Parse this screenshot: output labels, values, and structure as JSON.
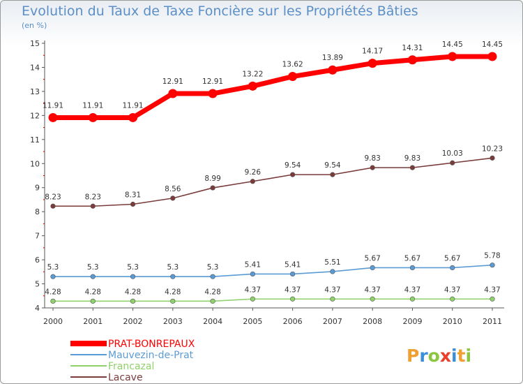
{
  "title": "Evolution du Taux de Taxe Foncière sur les Propriétés Bâties",
  "unit_label": "(en %)",
  "logo_text": "Proxiti",
  "chart_data": {
    "type": "line",
    "x": [
      "2000",
      "2001",
      "2002",
      "2003",
      "2004",
      "2005",
      "2006",
      "2007",
      "2008",
      "2009",
      "2010",
      "2011"
    ],
    "ylim": [
      4,
      15
    ],
    "yticks": [
      4,
      5,
      6,
      7,
      8,
      9,
      10,
      11,
      12,
      13,
      14,
      15
    ],
    "grid": false,
    "legend_position": "bottom-left",
    "series": [
      {
        "name": "PRAT-BONREPAUX",
        "color": "#ff0000",
        "values": [
          11.91,
          11.91,
          11.91,
          12.91,
          12.91,
          13.22,
          13.62,
          13.89,
          14.17,
          14.31,
          14.45,
          14.45
        ],
        "labels": [
          "11.91",
          "11.91",
          "11.91",
          "12.91",
          "12.91",
          "13.22",
          "13.62",
          "13.89",
          "14.17",
          "14.31",
          "14.45",
          "14.45"
        ]
      },
      {
        "name": "Mauvezin-de-Prat",
        "color": "#5b9bd5",
        "values": [
          5.3,
          5.3,
          5.3,
          5.3,
          5.3,
          5.41,
          5.41,
          5.51,
          5.67,
          5.67,
          5.67,
          5.78
        ],
        "labels": [
          "5.3",
          "5.3",
          "5.3",
          "5.3",
          "5.3",
          "5.41",
          "5.41",
          "5.51",
          "5.67",
          "5.67",
          "5.67",
          "5.78"
        ]
      },
      {
        "name": "Francazal",
        "color": "#8fd16a",
        "values": [
          4.28,
          4.28,
          4.28,
          4.28,
          4.28,
          4.37,
          4.37,
          4.37,
          4.37,
          4.37,
          4.37,
          4.37
        ],
        "labels": [
          "4.28",
          "4.28",
          "4.28",
          "4.28",
          "4.28",
          "4.37",
          "4.37",
          "4.37",
          "4.37",
          "4.37",
          "4.37",
          "4.37"
        ]
      },
      {
        "name": "Lacave",
        "color": "#7a3b3b",
        "values": [
          8.23,
          8.23,
          8.31,
          8.56,
          8.99,
          9.26,
          9.54,
          9.54,
          9.83,
          9.83,
          10.03,
          10.23
        ],
        "labels": [
          "8.23",
          "8.23",
          "8.31",
          "8.56",
          "8.99",
          "9.26",
          "9.54",
          "9.54",
          "9.83",
          "9.83",
          "10.03",
          "10.23"
        ]
      }
    ]
  }
}
